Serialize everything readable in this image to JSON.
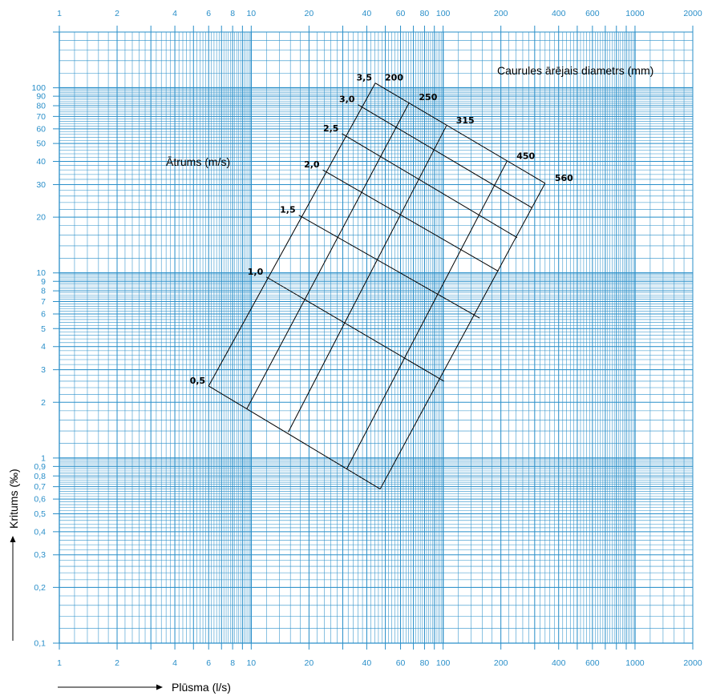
{
  "chart_data": {
    "type": "nomogram",
    "x_axis": {
      "label": "Plūsma (l/s)",
      "scale": "log",
      "range": [
        1,
        2000
      ],
      "tick_values": [
        1,
        2,
        4,
        6,
        8,
        10,
        20,
        40,
        60,
        80,
        100,
        200,
        400,
        600,
        1000,
        2000
      ],
      "tick_labels": [
        "1",
        "2",
        "4",
        "6",
        "8",
        "10",
        "20",
        "40",
        "60",
        "80",
        "100",
        "200",
        "400",
        "600",
        "1000",
        "2000"
      ]
    },
    "y_axis": {
      "label": "Kritums (‰)",
      "scale": "log",
      "range": [
        0.1,
        200
      ],
      "tick_values": [
        0.1,
        0.2,
        0.3,
        0.4,
        0.5,
        0.6,
        0.7,
        0.8,
        0.9,
        1,
        2,
        3,
        4,
        5,
        6,
        7,
        8,
        9,
        10,
        20,
        30,
        40,
        50,
        60,
        70,
        80,
        90,
        100
      ],
      "tick_labels": [
        "0,1",
        "0,2",
        "0,3",
        "0,4",
        "0,5",
        "0,6",
        "0,7",
        "0,8",
        "0,9",
        "1",
        "2",
        "3",
        "4",
        "5",
        "6",
        "7",
        "8",
        "9",
        "10",
        "20",
        "30",
        "40",
        "50",
        "60",
        "70",
        "80",
        "90",
        "100"
      ]
    },
    "diameter_title": "Caurules ārējais diametrs (mm)",
    "velocity_title": "Ātrums (m/s)",
    "diameters": [
      {
        "label": "200",
        "top": [
          44.3,
          106.0
        ],
        "bottom": [
          6.0,
          2.45
        ]
      },
      {
        "label": "250",
        "top": [
          66.6,
          83.2
        ],
        "bottom": [
          9.5,
          1.85
        ]
      },
      {
        "label": "315",
        "top": [
          104.0,
          62.3
        ],
        "bottom": [
          15.6,
          1.38
        ]
      },
      {
        "label": "450",
        "top": [
          215.0,
          40.0
        ],
        "bottom": [
          31.5,
          0.875
        ]
      },
      {
        "label": "560",
        "top": [
          340.0,
          30.5
        ],
        "bottom": [
          47.0,
          0.68
        ]
      }
    ],
    "velocities": [
      {
        "label": "0,5",
        "left": [
          6.0,
          2.45
        ],
        "right": [
          47.0,
          0.68
        ]
      },
      {
        "label": "1,0",
        "left": [
          12.0,
          9.5
        ],
        "right": [
          101.0,
          2.6
        ]
      },
      {
        "label": "1,5",
        "left": [
          17.7,
          20.5
        ],
        "right": [
          155.0,
          5.7
        ]
      },
      {
        "label": "2,0",
        "left": [
          23.6,
          36.0
        ],
        "right": [
          194.0,
          10.2
        ]
      },
      {
        "label": "2,5",
        "left": [
          29.7,
          56.5
        ],
        "right": [
          243.0,
          15.5
        ]
      },
      {
        "label": "3,0",
        "left": [
          36.0,
          81.0
        ],
        "right": [
          290.0,
          22.5
        ]
      },
      {
        "label": "3,5",
        "left": [
          44.3,
          106.0
        ],
        "right": [
          340.0,
          30.5
        ]
      }
    ],
    "grid": true
  },
  "colors": {
    "grid": "#2a8fc9",
    "lines": "#000000"
  }
}
